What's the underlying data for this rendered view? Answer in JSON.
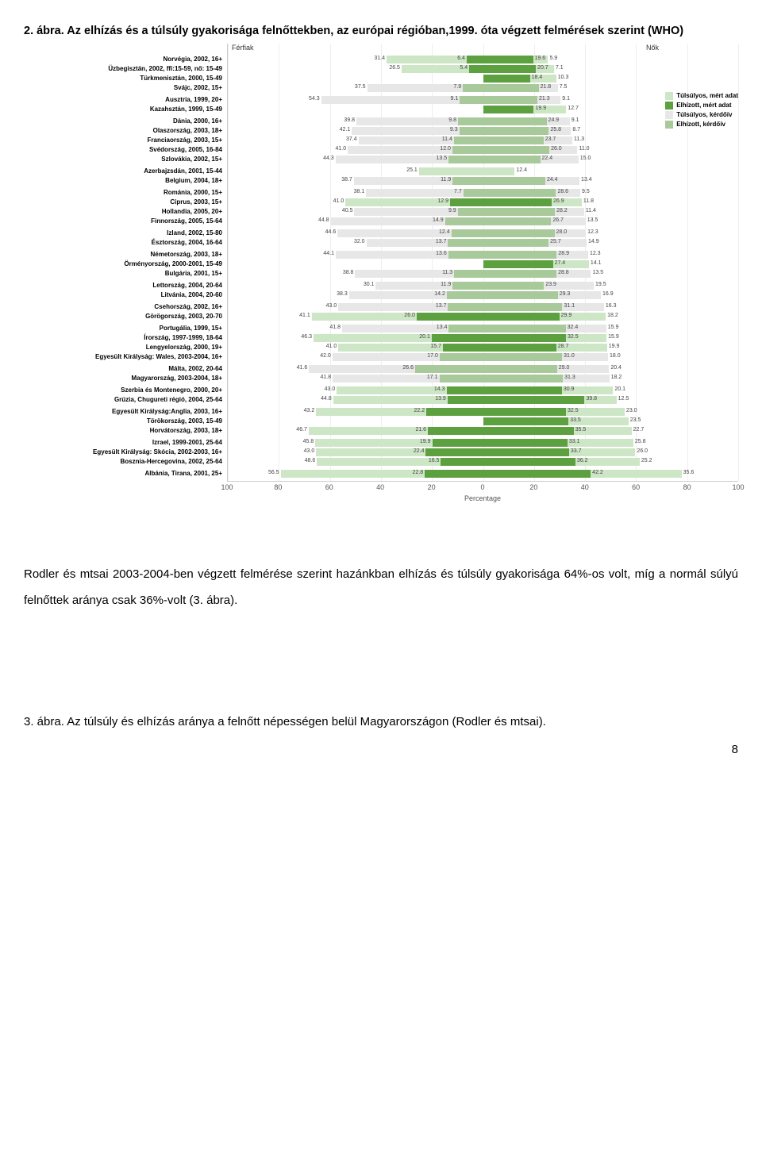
{
  "title": "2. ábra. Az elhízás és a túlsúly gyakorisága felnőttekben, az európai régióban,1999. óta végzett felmérések szerint (WHO)",
  "gender_left": "Férfiak",
  "gender_right": "Nők",
  "legend": [
    {
      "label": "Túlsúlyos, mért adat",
      "color": "#cde6c5"
    },
    {
      "label": "Elhízott, mért adat",
      "color": "#5da03f"
    },
    {
      "label": "Túlsúlyos, kérdőív",
      "color": "#e7e7e7"
    },
    {
      "label": "Elhízott, kérdőív",
      "color": "#a8c999"
    }
  ],
  "colors": {
    "obese_m": "#5da03f",
    "over_m": "#cde6c5",
    "obese_q": "#a8c999",
    "over_q": "#e7e7e7"
  },
  "xaxis": {
    "min": -100,
    "max": 100,
    "ticks": [
      100,
      80,
      60,
      40,
      20,
      0,
      20,
      40,
      60,
      80,
      100
    ],
    "label": "Percentage"
  },
  "groups": [
    {
      "rows": [
        {
          "label": "Norvégia, 2002, 16+",
          "m_ob": 6.4,
          "m_ov": 31.4,
          "f_ob": 19.6,
          "f_ov": 5.9,
          "type": "m"
        },
        {
          "label": "Üzbegisztán, 2002, ffi:15-59, nő: 15-49",
          "m_ob": 5.4,
          "m_ov": 26.5,
          "f_ob": 20.7,
          "f_ov": 7.1,
          "type": "m"
        },
        {
          "label": "Türkmenisztán, 2000, 15-49",
          "m_ob": 0,
          "m_ov": 0,
          "f_ob": 18.4,
          "f_ov": 10.3,
          "type": "m"
        },
        {
          "label": "Svájc, 2002, 15+",
          "m_ob": 7.9,
          "m_ov": 37.5,
          "f_ob": 21.8,
          "f_ov": 7.5,
          "type": "q"
        }
      ]
    },
    {
      "rows": [
        {
          "label": "Ausztria, 1999, 20+",
          "m_ob": 9.1,
          "m_ov": 54.3,
          "f_ob": 21.3,
          "f_ov": 9.1,
          "type": "q"
        },
        {
          "label": "Kazahsztán, 1999, 15-49",
          "m_ob": 0,
          "m_ov": 0,
          "f_ob": 19.9,
          "f_ov": 12.7,
          "type": "m"
        }
      ]
    },
    {
      "rows": [
        {
          "label": "Dánia, 2000, 16+",
          "m_ob": 9.8,
          "m_ov": 39.8,
          "f_ob": 24.9,
          "f_ov": 9.1,
          "type": "q"
        },
        {
          "label": "Olaszország, 2003, 18+",
          "m_ob": 9.3,
          "m_ov": 42.1,
          "f_ob": 25.8,
          "f_ov": 8.7,
          "type": "q"
        },
        {
          "label": "Franciaország, 2003, 15+",
          "m_ob": 11.4,
          "m_ov": 37.4,
          "f_ob": 23.7,
          "f_ov": 11.3,
          "type": "q"
        },
        {
          "label": "Svédország, 2005, 16-84",
          "m_ob": 12.0,
          "m_ov": 41.0,
          "f_ob": 26.0,
          "f_ov": 11.0,
          "type": "q"
        },
        {
          "label": "Szlovákia, 2002, 15+",
          "m_ob": 13.5,
          "m_ov": 44.3,
          "f_ob": 22.4,
          "f_ov": 15.0,
          "type": "q"
        }
      ]
    },
    {
      "rows": [
        {
          "label": "Azerbajzsdán, 2001, 15-44",
          "m_ob": 0,
          "m_ov": 25.1,
          "f_ob": 0,
          "f_ov": 12.4,
          "type": "m"
        },
        {
          "label": "Belgium, 2004, 18+",
          "m_ob": 11.9,
          "m_ov": 38.7,
          "f_ob": 24.4,
          "f_ov": 13.4,
          "type": "q"
        }
      ]
    },
    {
      "rows": [
        {
          "label": "Románia, 2000, 15+",
          "m_ob": 7.7,
          "m_ov": 38.1,
          "f_ob": 28.6,
          "f_ov": 9.5,
          "type": "q"
        },
        {
          "label": "Ciprus, 2003, 15+",
          "m_ob": 12.9,
          "m_ov": 41.0,
          "f_ob": 26.9,
          "f_ov": 11.8,
          "type": "m"
        },
        {
          "label": "Hollandia, 2005, 20+",
          "m_ob": 9.9,
          "m_ov": 40.5,
          "f_ob": 28.2,
          "f_ov": 11.4,
          "type": "q"
        },
        {
          "label": "Finnország, 2005, 15-64",
          "m_ob": 14.9,
          "m_ov": 44.8,
          "f_ob": 26.7,
          "f_ov": 13.5,
          "type": "q"
        }
      ]
    },
    {
      "rows": [
        {
          "label": "Izland, 2002, 15-80",
          "m_ob": 12.4,
          "m_ov": 44.6,
          "f_ob": 28.0,
          "f_ov": 12.3,
          "type": "q"
        },
        {
          "label": "Észtország, 2004, 16-64",
          "m_ob": 13.7,
          "m_ov": 32.0,
          "f_ob": 25.7,
          "f_ov": 14.9,
          "type": "q"
        }
      ]
    },
    {
      "rows": [
        {
          "label": "Németország, 2003, 18+",
          "m_ob": 13.6,
          "m_ov": 44.1,
          "f_ob": 28.9,
          "f_ov": 12.3,
          "type": "q"
        },
        {
          "label": "Örményország, 2000-2001, 15-49",
          "m_ob": 0,
          "m_ov": 0,
          "f_ob": 27.4,
          "f_ov": 14.1,
          "type": "m"
        },
        {
          "label": "Bulgária, 2001, 15+",
          "m_ob": 11.3,
          "m_ov": 38.8,
          "f_ob": 28.8,
          "f_ov": 13.5,
          "type": "q"
        }
      ]
    },
    {
      "rows": [
        {
          "label": "Lettország, 2004, 20-64",
          "m_ob": 11.9,
          "m_ov": 30.1,
          "f_ob": 23.9,
          "f_ov": 19.5,
          "type": "q"
        },
        {
          "label": "Litvánia, 2004, 20-60",
          "m_ob": 14.2,
          "m_ov": 38.3,
          "f_ob": 29.3,
          "f_ov": 16.9,
          "type": "q"
        }
      ]
    },
    {
      "rows": [
        {
          "label": "Csehország, 2002, 16+",
          "m_ob": 13.7,
          "m_ov": 43.0,
          "f_ob": 31.1,
          "f_ov": 16.3,
          "type": "q"
        },
        {
          "label": "Görögország, 2003, 20-70",
          "m_ob": 26.0,
          "m_ov": 41.1,
          "f_ob": 29.9,
          "f_ov": 18.2,
          "type": "m"
        }
      ]
    },
    {
      "rows": [
        {
          "label": "Portugália, 1999, 15+",
          "m_ob": 13.4,
          "m_ov": 41.8,
          "f_ob": 32.4,
          "f_ov": 15.9,
          "type": "q"
        },
        {
          "label": "Írország, 1997-1999, 18-64",
          "m_ob": 20.1,
          "m_ov": 46.3,
          "f_ob": 32.5,
          "f_ov": 15.9,
          "type": "m"
        },
        {
          "label": "Lengyelország, 2000, 19+",
          "m_ob": 15.7,
          "m_ov": 41.0,
          "f_ob": 28.7,
          "f_ov": 19.9,
          "type": "m"
        },
        {
          "label": "Egyesült Királyság: Wales, 2003-2004, 16+",
          "m_ob": 17.0,
          "m_ov": 42.0,
          "f_ob": 31.0,
          "f_ov": 18.0,
          "type": "q"
        }
      ]
    },
    {
      "rows": [
        {
          "label": "Málta, 2002, 20-64",
          "m_ob": 26.6,
          "m_ov": 41.6,
          "f_ob": 29.0,
          "f_ov": 20.4,
          "type": "q"
        },
        {
          "label": "Magyarország, 2003-2004, 18+",
          "m_ob": 17.1,
          "m_ov": 41.8,
          "f_ob": 31.3,
          "f_ov": 18.2,
          "type": "q"
        }
      ]
    },
    {
      "rows": [
        {
          "label": "Szerbia és Montenegro, 2000, 20+",
          "m_ob": 14.3,
          "m_ov": 43.0,
          "f_ob": 30.9,
          "f_ov": 20.1,
          "type": "m"
        },
        {
          "label": "Grúzia, Chugureti régió, 2004, 25-64",
          "m_ob": 13.9,
          "m_ov": 44.8,
          "f_ob": 39.8,
          "f_ov": 12.5,
          "type": "m"
        }
      ]
    },
    {
      "rows": [
        {
          "label": "Egyesült Királyság:Anglia, 2003, 16+",
          "m_ob": 22.2,
          "m_ov": 43.2,
          "f_ob": 32.5,
          "f_ov": 23.0,
          "type": "m"
        },
        {
          "label": "Törökország, 2003, 15-49",
          "m_ob": 0,
          "m_ov": 0,
          "f_ob": 33.5,
          "f_ov": 23.5,
          "type": "m"
        },
        {
          "label": "Horvátország, 2003, 18+",
          "m_ob": 21.6,
          "m_ov": 46.7,
          "f_ob": 35.5,
          "f_ov": 22.7,
          "type": "m"
        }
      ]
    },
    {
      "rows": [
        {
          "label": "Izrael, 1999-2001, 25-64",
          "m_ob": 19.9,
          "m_ov": 45.8,
          "f_ob": 33.1,
          "f_ov": 25.8,
          "type": "m"
        },
        {
          "label": "Egyesült Királyság: Skócia, 2002-2003, 16+",
          "m_ob": 22.4,
          "m_ov": 43.0,
          "f_ob": 33.7,
          "f_ov": 26.0,
          "type": "m"
        },
        {
          "label": "Bosznia-Hercegovina, 2002, 25-64",
          "m_ob": 16.5,
          "m_ov": 48.6,
          "f_ob": 36.2,
          "f_ov": 25.2,
          "type": "m"
        }
      ]
    },
    {
      "rows": [
        {
          "label": "Albánia, Tirana, 2001, 25+",
          "m_ob": 22.8,
          "m_ov": 56.5,
          "f_ob": 42.2,
          "f_ov": 35.6,
          "type": "m"
        }
      ]
    }
  ],
  "body_text": "Rodler és mtsai 2003-2004-ben végzett felmérése szerint hazánkban elhízás és túlsúly gyakorisága 64%-os volt, míg a normál súlyú felnőttek aránya csak 36%-volt (3. ábra).",
  "caption2": "3. ábra. Az túlsúly és elhízás aránya a felnőtt népességen belül Magyarországon (Rodler és mtsai).",
  "pagenum": "8"
}
